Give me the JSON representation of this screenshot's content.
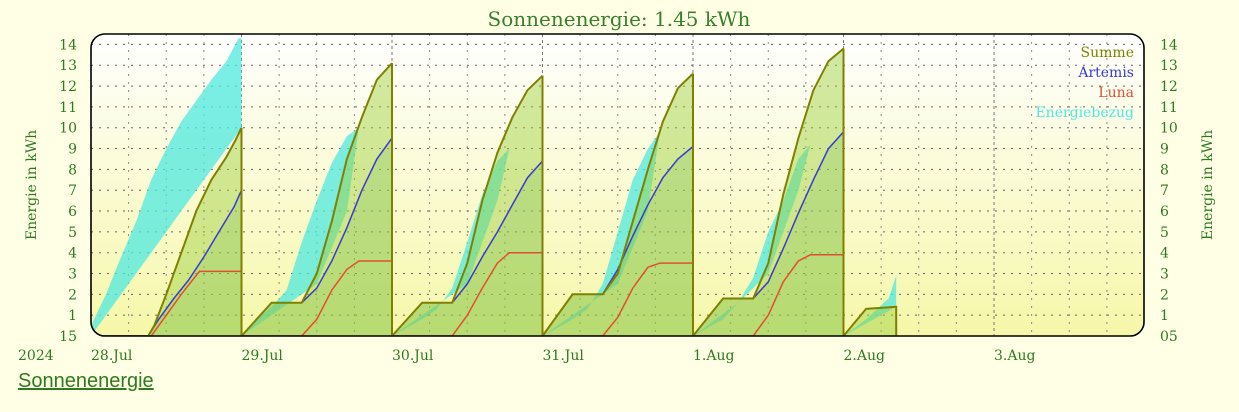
{
  "page": {
    "footer_link": "Sonnenenergie"
  },
  "chart_data": {
    "type": "area",
    "title": "Sonnenenergie: 1.45 kWh",
    "ylabel": "Energie in kWh",
    "ylabel_right": "Energie in kWh",
    "year_label": "2024",
    "ylim": [
      0,
      14.5
    ],
    "y_ticks": [
      1,
      2,
      3,
      4,
      5,
      6,
      7,
      8,
      9,
      10,
      11,
      12,
      13,
      14
    ],
    "y_min_label_left": "15",
    "y_min_label_right": "05",
    "x_days": [
      "28.Jul",
      "29.Jul",
      "30.Jul",
      "31.Jul",
      "1.Aug",
      "2.Aug",
      "3.Aug"
    ],
    "x_range_days": [
      0,
      7.0
    ],
    "grid": true,
    "legend_position": "top-right",
    "colors": {
      "Summe": "#808000",
      "Artemis": "#3a3ad0",
      "Luna": "#e05030",
      "Energiebezug": "#4fe8e0"
    },
    "series": [
      {
        "name": "Summe",
        "points": [
          [
            [
              0.0,
              0
            ],
            [
              0.38,
              0
            ],
            [
              0.42,
              0.5
            ],
            [
              0.5,
              2.0
            ],
            [
              0.6,
              4.0
            ],
            [
              0.7,
              6.0
            ],
            [
              0.8,
              7.5
            ],
            [
              0.9,
              8.6
            ],
            [
              0.96,
              9.4
            ],
            [
              1.0,
              10.0
            ]
          ],
          [
            [
              1.0,
              0
            ],
            [
              1.2,
              1.6
            ],
            [
              1.4,
              1.6
            ],
            [
              1.5,
              3.0
            ],
            [
              1.6,
              5.5
            ],
            [
              1.7,
              8.5
            ],
            [
              1.8,
              10.5
            ],
            [
              1.9,
              12.3
            ],
            [
              2.0,
              13.1
            ]
          ],
          [
            [
              2.0,
              0
            ],
            [
              2.2,
              1.6
            ],
            [
              2.4,
              1.6
            ],
            [
              2.5,
              3.5
            ],
            [
              2.6,
              6.5
            ],
            [
              2.7,
              8.8
            ],
            [
              2.8,
              10.5
            ],
            [
              2.9,
              11.8
            ],
            [
              3.0,
              12.5
            ]
          ],
          [
            [
              3.0,
              0
            ],
            [
              3.2,
              2.0
            ],
            [
              3.4,
              2.0
            ],
            [
              3.5,
              3.0
            ],
            [
              3.6,
              5.5
            ],
            [
              3.7,
              8.0
            ],
            [
              3.8,
              10.3
            ],
            [
              3.9,
              11.9
            ],
            [
              4.0,
              12.6
            ]
          ],
          [
            [
              4.0,
              0
            ],
            [
              4.2,
              1.8
            ],
            [
              4.4,
              1.8
            ],
            [
              4.5,
              3.5
            ],
            [
              4.6,
              6.8
            ],
            [
              4.7,
              9.5
            ],
            [
              4.8,
              11.8
            ],
            [
              4.9,
              13.2
            ],
            [
              5.0,
              13.8
            ]
          ],
          [
            [
              5.0,
              0
            ],
            [
              5.15,
              1.3
            ],
            [
              5.35,
              1.4
            ],
            [
              5.35,
              0
            ]
          ]
        ]
      },
      {
        "name": "Artemis",
        "points": [
          [
            [
              0.0,
              0
            ],
            [
              0.38,
              0
            ],
            [
              0.45,
              0.8
            ],
            [
              0.55,
              1.8
            ],
            [
              0.65,
              2.7
            ],
            [
              0.75,
              3.8
            ],
            [
              0.85,
              5.0
            ],
            [
              0.95,
              6.2
            ],
            [
              1.0,
              7.0
            ]
          ],
          [
            [
              1.0,
              0
            ],
            [
              1.2,
              1.6
            ],
            [
              1.4,
              1.6
            ],
            [
              1.5,
              2.3
            ],
            [
              1.6,
              3.6
            ],
            [
              1.7,
              5.2
            ],
            [
              1.8,
              7.0
            ],
            [
              1.9,
              8.5
            ],
            [
              2.0,
              9.5
            ]
          ],
          [
            [
              2.0,
              0
            ],
            [
              2.2,
              1.6
            ],
            [
              2.4,
              1.6
            ],
            [
              2.5,
              2.5
            ],
            [
              2.6,
              3.8
            ],
            [
              2.7,
              5.0
            ],
            [
              2.8,
              6.3
            ],
            [
              2.9,
              7.6
            ],
            [
              3.0,
              8.4
            ]
          ],
          [
            [
              3.0,
              0
            ],
            [
              3.2,
              2.0
            ],
            [
              3.4,
              2.0
            ],
            [
              3.5,
              3.2
            ],
            [
              3.6,
              4.8
            ],
            [
              3.7,
              6.3
            ],
            [
              3.8,
              7.6
            ],
            [
              3.9,
              8.5
            ],
            [
              4.0,
              9.1
            ]
          ],
          [
            [
              4.0,
              0
            ],
            [
              4.2,
              1.8
            ],
            [
              4.4,
              1.8
            ],
            [
              4.5,
              2.6
            ],
            [
              4.6,
              4.2
            ],
            [
              4.7,
              5.9
            ],
            [
              4.8,
              7.5
            ],
            [
              4.9,
              9.0
            ],
            [
              5.0,
              9.8
            ]
          ]
        ]
      },
      {
        "name": "Luna",
        "points": [
          [
            [
              0.0,
              0
            ],
            [
              0.4,
              0
            ],
            [
              0.5,
              1.0
            ],
            [
              0.6,
              2.0
            ],
            [
              0.72,
              3.1
            ],
            [
              1.0,
              3.1
            ]
          ],
          [
            [
              1.0,
              0
            ],
            [
              1.4,
              0
            ],
            [
              1.5,
              0.8
            ],
            [
              1.6,
              2.2
            ],
            [
              1.7,
              3.2
            ],
            [
              1.78,
              3.6
            ],
            [
              2.0,
              3.6
            ]
          ],
          [
            [
              2.0,
              0
            ],
            [
              2.4,
              0
            ],
            [
              2.5,
              1.0
            ],
            [
              2.6,
              2.3
            ],
            [
              2.7,
              3.5
            ],
            [
              2.78,
              4.0
            ],
            [
              3.0,
              4.0
            ]
          ],
          [
            [
              3.0,
              0
            ],
            [
              3.4,
              0
            ],
            [
              3.5,
              0.9
            ],
            [
              3.6,
              2.3
            ],
            [
              3.7,
              3.3
            ],
            [
              3.78,
              3.5
            ],
            [
              4.0,
              3.5
            ]
          ],
          [
            [
              4.0,
              0
            ],
            [
              4.4,
              0
            ],
            [
              4.5,
              1.0
            ],
            [
              4.6,
              2.6
            ],
            [
              4.7,
              3.6
            ],
            [
              4.78,
              3.9
            ],
            [
              5.0,
              3.9
            ]
          ]
        ]
      },
      {
        "name": "Energiebezug",
        "points": [
          [
            [
              0.0,
              0.5
            ],
            [
              0.1,
              2.0
            ],
            [
              0.2,
              3.8
            ],
            [
              0.3,
              5.5
            ],
            [
              0.4,
              7.5
            ],
            [
              0.5,
              9.0
            ],
            [
              0.6,
              10.3
            ],
            [
              0.7,
              11.3
            ],
            [
              0.8,
              12.3
            ],
            [
              0.9,
              13.2
            ],
            [
              0.98,
              14.3
            ],
            [
              1.0,
              14.3
            ],
            [
              1.0,
              10.0
            ],
            [
              0.0,
              0
            ]
          ],
          [
            [
              1.0,
              0
            ],
            [
              1.1,
              0.8
            ],
            [
              1.2,
              1.4
            ],
            [
              1.3,
              2.2
            ],
            [
              1.4,
              4.5
            ],
            [
              1.5,
              6.5
            ],
            [
              1.6,
              8.3
            ],
            [
              1.7,
              9.6
            ],
            [
              1.78,
              10.0
            ],
            [
              1.7,
              6.0
            ],
            [
              1.5,
              2.5
            ],
            [
              1.3,
              1.5
            ],
            [
              1.0,
              0
            ]
          ],
          [
            [
              2.0,
              0
            ],
            [
              2.2,
              0.8
            ],
            [
              2.3,
              1.3
            ],
            [
              2.4,
              2.3
            ],
            [
              2.5,
              4.5
            ],
            [
              2.6,
              6.8
            ],
            [
              2.7,
              8.4
            ],
            [
              2.78,
              9.0
            ],
            [
              2.7,
              6.5
            ],
            [
              2.5,
              2.5
            ],
            [
              2.3,
              1.5
            ],
            [
              2.0,
              0
            ]
          ],
          [
            [
              3.0,
              0
            ],
            [
              3.2,
              0.8
            ],
            [
              3.3,
              1.3
            ],
            [
              3.4,
              2.5
            ],
            [
              3.5,
              5.0
            ],
            [
              3.6,
              7.5
            ],
            [
              3.7,
              9.0
            ],
            [
              3.78,
              9.8
            ],
            [
              3.7,
              6.0
            ],
            [
              3.5,
              2.5
            ],
            [
              3.3,
              1.5
            ],
            [
              3.0,
              0
            ]
          ],
          [
            [
              4.0,
              0
            ],
            [
              4.2,
              0.8
            ],
            [
              4.3,
              1.6
            ],
            [
              4.4,
              2.8
            ],
            [
              4.5,
              5.0
            ],
            [
              4.6,
              6.5
            ],
            [
              4.7,
              8.5
            ],
            [
              4.78,
              9.2
            ],
            [
              4.7,
              7.0
            ],
            [
              4.5,
              3.0
            ],
            [
              4.3,
              1.6
            ],
            [
              4.0,
              0
            ]
          ],
          [
            [
              5.0,
              0
            ],
            [
              5.15,
              0.8
            ],
            [
              5.3,
              1.8
            ],
            [
              5.35,
              2.9
            ],
            [
              5.35,
              1.4
            ],
            [
              5.0,
              0
            ]
          ]
        ]
      }
    ]
  }
}
